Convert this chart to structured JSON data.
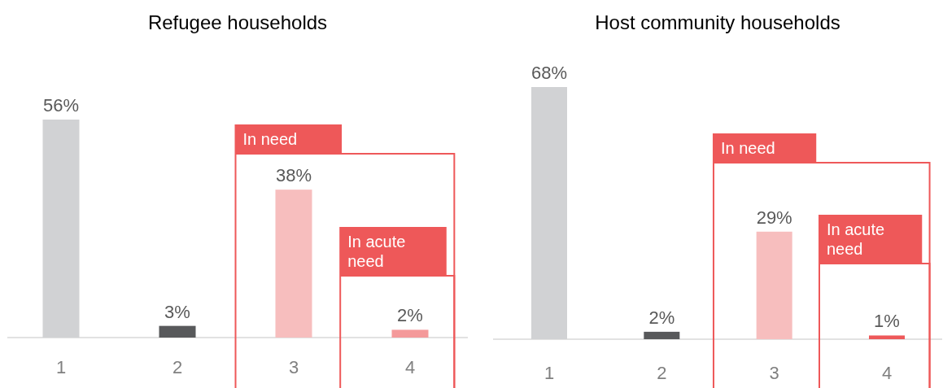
{
  "chart_data": [
    {
      "type": "bar",
      "title": "Refugee households",
      "categories": [
        "1",
        "2",
        "3",
        "4"
      ],
      "values": [
        56,
        3,
        38,
        2
      ],
      "colors": [
        "#d1d2d4",
        "#58595b",
        "#f7bebe",
        "#f4999a"
      ],
      "value_labels": [
        "56%",
        "3%",
        "38%",
        "2%"
      ],
      "annotations": [
        "In need",
        "In acute need"
      ]
    },
    {
      "type": "bar",
      "title": "Host community households",
      "categories": [
        "1",
        "2",
        "3",
        "4"
      ],
      "values": [
        68,
        2,
        29,
        1
      ],
      "colors": [
        "#d1d2d4",
        "#58595b",
        "#f7bebe",
        "#ee5859"
      ],
      "value_labels": [
        "68%",
        "2%",
        "29%",
        "1%"
      ],
      "annotations": [
        "In need",
        "In acute need"
      ]
    }
  ]
}
